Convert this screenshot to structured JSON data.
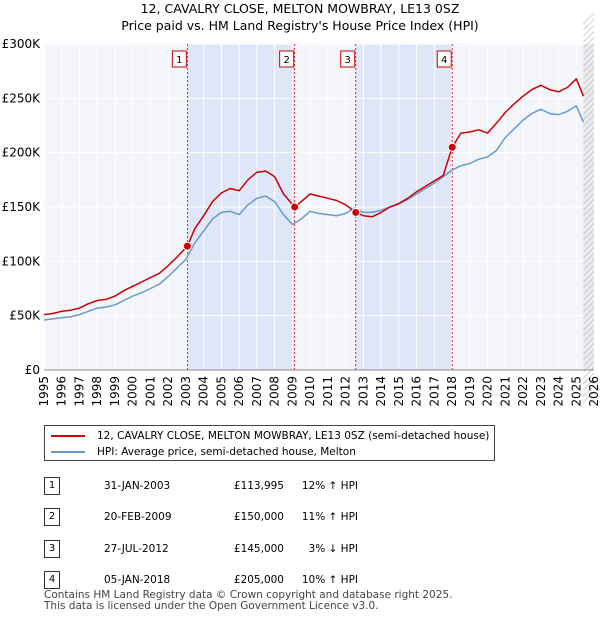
{
  "title_line1": "12, CAVALRY CLOSE, MELTON MOWBRAY, LE13 0SZ",
  "title_line2": "Price paid vs. HM Land Registry's House Price Index (HPI)",
  "chart_data": {
    "type": "line",
    "title": "12, CAVALRY CLOSE, MELTON MOWBRAY, LE13 0SZ — Price paid vs. HM Land Registry's House Price Index (HPI)",
    "xlabel": "",
    "ylabel": "",
    "xlim": [
      1995,
      2026
    ],
    "ylim": [
      0,
      300000
    ],
    "x_ticks": [
      1995,
      1996,
      1997,
      1998,
      1999,
      2000,
      2001,
      2002,
      2003,
      2004,
      2005,
      2006,
      2007,
      2008,
      2009,
      2010,
      2011,
      2012,
      2013,
      2014,
      2015,
      2016,
      2017,
      2018,
      2019,
      2020,
      2021,
      2022,
      2023,
      2024,
      2025,
      2026
    ],
    "y_ticks": [
      0,
      50000,
      100000,
      150000,
      200000,
      250000,
      300000
    ],
    "y_tick_labels": [
      "£0",
      "£50K",
      "£100K",
      "£150K",
      "£200K",
      "£250K",
      "£300K"
    ],
    "grid": true,
    "legend_position": "bottom",
    "series": [
      {
        "name": "12, CAVALRY CLOSE, MELTON MOWBRAY, LE13 0SZ (semi-detached house)",
        "color": "#cc0000",
        "x": [
          1995.0,
          1995.5,
          1996.0,
          1996.5,
          1997.0,
          1997.5,
          1998.0,
          1998.5,
          1999.0,
          1999.5,
          2000.0,
          2000.5,
          2001.0,
          2001.5,
          2002.0,
          2002.5,
          2003.08,
          2003.5,
          2004.0,
          2004.5,
          2005.0,
          2005.5,
          2006.0,
          2006.5,
          2007.0,
          2007.5,
          2008.0,
          2008.5,
          2009.13,
          2009.5,
          2010.0,
          2010.5,
          2011.0,
          2011.5,
          2012.0,
          2012.57,
          2013.0,
          2013.5,
          2014.0,
          2014.5,
          2015.0,
          2015.5,
          2016.0,
          2016.5,
          2017.0,
          2017.5,
          2018.01,
          2018.5,
          2019.0,
          2019.5,
          2020.0,
          2020.5,
          2021.0,
          2021.5,
          2022.0,
          2022.5,
          2023.0,
          2023.5,
          2024.0,
          2024.5,
          2025.0,
          2025.4
        ],
        "values": [
          51000,
          52000,
          54000,
          55000,
          57000,
          61000,
          64000,
          65000,
          68000,
          73000,
          77000,
          81000,
          85000,
          89000,
          96000,
          104000,
          113995,
          130000,
          142000,
          155000,
          163000,
          167000,
          165000,
          175000,
          182000,
          183000,
          178000,
          162000,
          150000,
          155000,
          162000,
          160000,
          158000,
          156000,
          152000,
          145000,
          142000,
          141000,
          145000,
          150000,
          153000,
          158000,
          164000,
          169000,
          174000,
          179000,
          205000,
          218000,
          219000,
          221000,
          218000,
          227000,
          237000,
          245000,
          252000,
          258000,
          262000,
          258000,
          256000,
          260000,
          268000,
          252000
        ]
      },
      {
        "name": "HPI: Average price, semi-detached house, Melton",
        "color": "#6699cc",
        "x": [
          1995.0,
          1995.5,
          1996.0,
          1996.5,
          1997.0,
          1997.5,
          1998.0,
          1998.5,
          1999.0,
          1999.5,
          2000.0,
          2000.5,
          2001.0,
          2001.5,
          2002.0,
          2002.5,
          2003.0,
          2003.5,
          2004.0,
          2004.5,
          2005.0,
          2005.5,
          2006.0,
          2006.5,
          2007.0,
          2007.5,
          2008.0,
          2008.5,
          2009.0,
          2009.5,
          2010.0,
          2010.5,
          2011.0,
          2011.5,
          2012.0,
          2012.5,
          2013.0,
          2013.5,
          2014.0,
          2014.5,
          2015.0,
          2015.5,
          2016.0,
          2016.5,
          2017.0,
          2017.5,
          2018.0,
          2018.5,
          2019.0,
          2019.5,
          2020.0,
          2020.5,
          2021.0,
          2021.5,
          2022.0,
          2022.5,
          2023.0,
          2023.5,
          2024.0,
          2024.5,
          2025.0,
          2025.4
        ],
        "values": [
          46000,
          47000,
          48000,
          49000,
          51000,
          54000,
          57000,
          58000,
          60000,
          64000,
          68000,
          71000,
          75000,
          79000,
          86000,
          94000,
          102000,
          117000,
          128000,
          139000,
          145000,
          146000,
          143000,
          152000,
          158000,
          160000,
          155000,
          143000,
          134000,
          139000,
          146000,
          144000,
          143000,
          142000,
          144000,
          149000,
          145000,
          145000,
          147000,
          150000,
          153000,
          157000,
          162000,
          167000,
          172000,
          178000,
          184000,
          188000,
          190000,
          194000,
          196000,
          202000,
          214000,
          222000,
          230000,
          236000,
          240000,
          236000,
          235000,
          238000,
          243000,
          228000
        ]
      }
    ],
    "sales": [
      {
        "label": "1",
        "x": 2003.08,
        "value": 113995
      },
      {
        "label": "2",
        "x": 2009.13,
        "value": 150000
      },
      {
        "label": "3",
        "x": 2012.57,
        "value": 145000
      },
      {
        "label": "4",
        "x": 2018.01,
        "value": 205000
      }
    ],
    "projection_start": 2025.4
  },
  "legend": {
    "item1": "12, CAVALRY CLOSE, MELTON MOWBRAY, LE13 0SZ (semi-detached house)",
    "item2": "HPI: Average price, semi-detached house, Melton",
    "color1": "#cc0000",
    "color2": "#6699cc"
  },
  "transactions": [
    {
      "index": "1",
      "date": "31-JAN-2003",
      "price": "£113,995",
      "hpi": "12% ↑ HPI"
    },
    {
      "index": "2",
      "date": "20-FEB-2009",
      "price": "£150,000",
      "hpi": "11% ↑ HPI"
    },
    {
      "index": "3",
      "date": "27-JUL-2012",
      "price": "£145,000",
      "hpi": "3% ↓ HPI"
    },
    {
      "index": "4",
      "date": "05-JAN-2018",
      "price": "£205,000",
      "hpi": "10% ↑ HPI"
    }
  ],
  "footer_line1": "Contains HM Land Registry data © Crown copyright and database right 2025.",
  "footer_line2": "This data is licensed under the Open Government Licence v3.0."
}
